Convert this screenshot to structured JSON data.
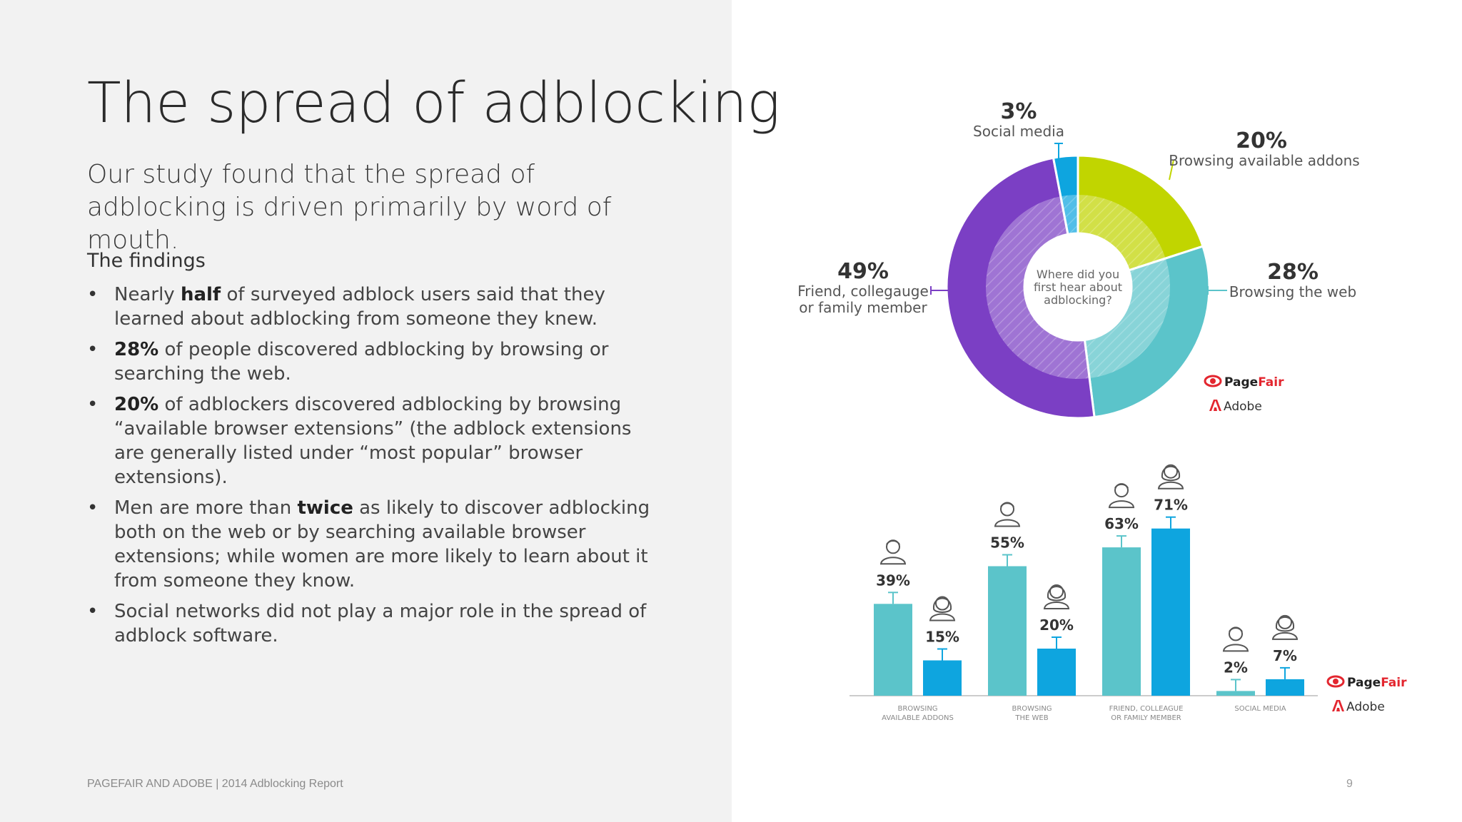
{
  "slide": {
    "title": "The spread of adblocking",
    "subtitle": "Our study found that the spread of adblocking is driven primarily by word of mouth.",
    "findings_heading": "The findings",
    "findings": [
      {
        "pre": "Nearly ",
        "bold": "half",
        "post": " of surveyed adblock users said that they learned about adblocking from someone they knew."
      },
      {
        "pre": "",
        "bold": "28%",
        "post": " of people discovered adblocking by browsing or searching the web."
      },
      {
        "pre": "",
        "bold": "20%",
        "post": " of adblockers discovered adblocking by browsing “available browser extensions” (the adblock extensions are generally listed under “most popular” browser extensions)."
      },
      {
        "pre": "Men are more than ",
        "bold": "twice",
        "post": " as likely to discover adblocking both on the web or by searching available browser extensions; while women are more likely to learn about it from someone they know."
      },
      {
        "pre": "Social networks did not play a major role in the spread of adblock software.",
        "bold": "",
        "post": ""
      }
    ],
    "footer": "PAGEFAIR AND ADOBE | 2014 Adblocking Report",
    "page_number": "9",
    "brands": {
      "pagefair": "PageFair",
      "pagefair_page": "Page",
      "pagefair_fair": "Fair",
      "adobe": "Adobe"
    }
  },
  "colors": {
    "purple": "#7b3fc4",
    "teal": "#5bc4ca",
    "lime": "#c1d500",
    "blue": "#0ea5df",
    "men_bar": "#5bc4ca",
    "women_bar": "#0ea5df",
    "pagefair_red": "#e3262f"
  },
  "chart_data": [
    {
      "type": "pie",
      "center_text": [
        "Where did you",
        "first hear about",
        "adblocking?"
      ],
      "slices": [
        {
          "value": 20,
          "label": "20%",
          "name": "Browsing available addons",
          "color": "#c1d500"
        },
        {
          "value": 28,
          "label": "28%",
          "name": "Browsing the web",
          "color": "#5bc4ca"
        },
        {
          "value": 49,
          "label": "49%",
          "name_lines": [
            "Friend, collegauge",
            "or family member"
          ],
          "color": "#7b3fc4"
        },
        {
          "value": 3,
          "label": "3%",
          "name": "Social media",
          "color": "#0ea5df"
        }
      ]
    },
    {
      "type": "bar",
      "categories": [
        [
          "BROWSING",
          "AVAILABLE ADDONS"
        ],
        [
          "BROWSING",
          "THE WEB"
        ],
        [
          "FRIEND, COLLEAGUE",
          "OR FAMILY MEMBER"
        ],
        [
          "SOCIAL MEDIA"
        ]
      ],
      "series": [
        {
          "icon": "man-icon",
          "values": [
            39,
            55,
            63,
            2
          ],
          "labels": [
            "39%",
            "55%",
            "63%",
            "2%"
          ],
          "color": "#5bc4ca"
        },
        {
          "icon": "woman-icon",
          "values": [
            15,
            20,
            71,
            7
          ],
          "labels": [
            "15%",
            "20%",
            "71%",
            "7%"
          ],
          "color": "#0ea5df"
        }
      ]
    }
  ]
}
